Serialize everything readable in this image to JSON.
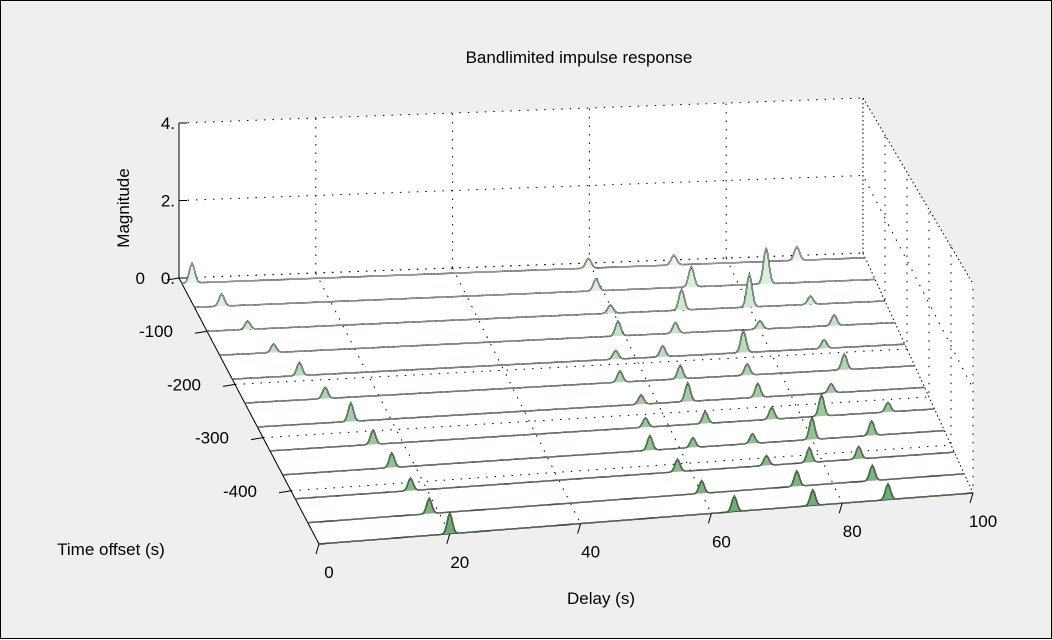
{
  "chart_data": {
    "type": "waterfall",
    "title": "Bandlimited impulse response",
    "xlabel": "Delay (s)",
    "ylabel": "Time offset (s)",
    "zlabel": "Magnitude",
    "xlim": [
      0,
      100
    ],
    "ylim": [
      -500,
      0
    ],
    "zlim": [
      0,
      4
    ],
    "xticks": [
      0,
      20,
      40,
      60,
      80,
      100
    ],
    "xtick_labels": [
      "0",
      "20",
      "40",
      "60",
      "80",
      "100"
    ],
    "yticks": [
      -400,
      -300,
      -200,
      -100,
      0
    ],
    "ytick_labels": [
      "-400",
      "-300",
      "-200",
      "-100",
      "0"
    ],
    "zticks": [
      0,
      2,
      4
    ],
    "ztick_labels": [
      "0.",
      "2.",
      "4."
    ],
    "grid": true,
    "traces": [
      {
        "y": -10,
        "peaks": [
          [
            1.5,
            0.5
          ],
          [
            59.5,
            0.25
          ],
          [
            72.0,
            0.25
          ],
          [
            90.0,
            0.35
          ]
        ]
      },
      {
        "y": -55,
        "peaks": [
          [
            4.0,
            0.3
          ],
          [
            59.0,
            0.3
          ],
          [
            73.0,
            0.5
          ],
          [
            84.0,
            0.9
          ]
        ]
      },
      {
        "y": -100,
        "peaks": [
          [
            6.0,
            0.2
          ],
          [
            59.5,
            0.2
          ],
          [
            70.0,
            0.5
          ],
          [
            80.0,
            0.8
          ],
          [
            89.0,
            0.2
          ]
        ]
      },
      {
        "y": -145,
        "peaks": [
          [
            8.0,
            0.2
          ],
          [
            59.0,
            0.35
          ],
          [
            67.5,
            0.25
          ],
          [
            80.0,
            0.2
          ],
          [
            91.0,
            0.25
          ]
        ]
      },
      {
        "y": -190,
        "peaks": [
          [
            10.0,
            0.3
          ],
          [
            57.0,
            0.2
          ],
          [
            64.0,
            0.25
          ],
          [
            76.0,
            0.5
          ],
          [
            88.0,
            0.2
          ]
        ]
      },
      {
        "y": -235,
        "peaks": [
          [
            12.0,
            0.25
          ],
          [
            56.0,
            0.25
          ],
          [
            65.0,
            0.3
          ],
          [
            75.0,
            0.25
          ],
          [
            89.5,
            0.35
          ]
        ]
      },
      {
        "y": -280,
        "peaks": [
          [
            14.0,
            0.4
          ],
          [
            57.5,
            0.2
          ],
          [
            64.5,
            0.4
          ],
          [
            75.0,
            0.3
          ],
          [
            86.0,
            0.2
          ]
        ]
      },
      {
        "y": -325,
        "peaks": [
          [
            15.5,
            0.3
          ],
          [
            56.5,
            0.2
          ],
          [
            65.5,
            0.25
          ],
          [
            75.5,
            0.25
          ],
          [
            83.0,
            0.45
          ],
          [
            93.0,
            0.2
          ]
        ]
      },
      {
        "y": -370,
        "peaks": [
          [
            16.5,
            0.3
          ],
          [
            55.5,
            0.3
          ],
          [
            62.0,
            0.2
          ],
          [
            71.0,
            0.2
          ],
          [
            80.0,
            0.45
          ],
          [
            89.0,
            0.3
          ]
        ]
      },
      {
        "y": -415,
        "peaks": [
          [
            17.5,
            0.25
          ],
          [
            58.0,
            0.25
          ],
          [
            71.5,
            0.2
          ],
          [
            78.0,
            0.3
          ],
          [
            85.5,
            0.25
          ]
        ]
      },
      {
        "y": -460,
        "peaks": [
          [
            18.5,
            0.3
          ],
          [
            60.0,
            0.25
          ],
          [
            74.5,
            0.3
          ],
          [
            86.0,
            0.3
          ]
        ]
      },
      {
        "y": -500,
        "peaks": [
          [
            20.0,
            0.4
          ],
          [
            63.5,
            0.3
          ],
          [
            75.5,
            0.3
          ],
          [
            87.0,
            0.3
          ]
        ]
      }
    ]
  },
  "colors": {
    "figure_bg": "#efefef",
    "axes_bg": "#ffffff",
    "front_fill": "#6fae72",
    "back_fill": "#e3f7e3",
    "trace_line": "#000000"
  }
}
